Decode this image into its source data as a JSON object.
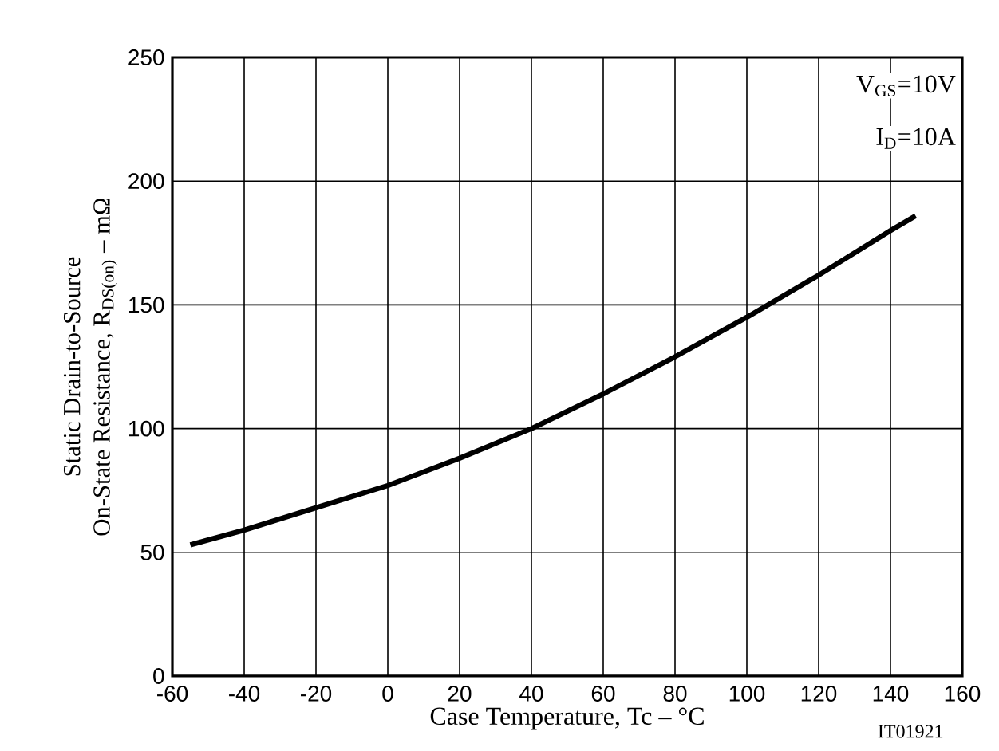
{
  "chart_data": {
    "type": "line",
    "xlabel": "Case Temperature, Tc  –  °C",
    "ylabel": "Static Drain-to-Source On-State Resistance, R$_{DS(on)}$  – mΩ",
    "x": [
      -55,
      -40,
      -20,
      0,
      20,
      40,
      60,
      80,
      100,
      120,
      140,
      147
    ],
    "series": [
      {
        "color": "#000000",
        "values": [
          53,
          59,
          68,
          77,
          88,
          100,
          114,
          129,
          145,
          162,
          180,
          186
        ]
      }
    ],
    "xlim": [
      -60,
      160
    ],
    "xticks": [
      -60,
      -40,
      -20,
      0,
      20,
      40,
      60,
      80,
      100,
      120,
      140,
      160
    ],
    "ylim": [
      0,
      250
    ],
    "yticks": [
      0,
      50,
      100,
      150,
      200,
      250
    ],
    "grid": true,
    "marker": "none",
    "line_style": "solid",
    "annotations": [
      "V$_{GS}$=10V",
      "I$_{D}$=10A",
      "IT01921"
    ]
  }
}
